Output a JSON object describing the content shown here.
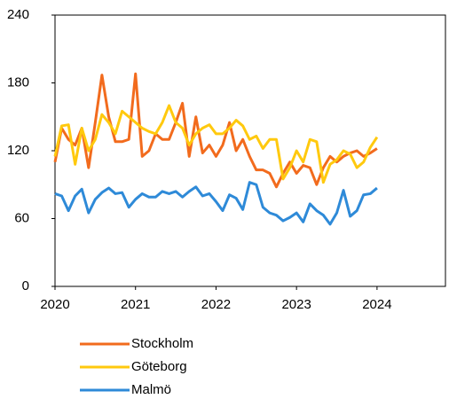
{
  "chart_data": {
    "type": "line",
    "x": [
      2020,
      2020.083,
      2020.167,
      2020.25,
      2020.333,
      2020.417,
      2020.5,
      2020.583,
      2020.667,
      2020.75,
      2020.833,
      2020.917,
      2021,
      2021.083,
      2021.167,
      2021.25,
      2021.333,
      2021.417,
      2021.5,
      2021.583,
      2021.667,
      2021.75,
      2021.833,
      2021.917,
      2022,
      2022.083,
      2022.167,
      2022.25,
      2022.333,
      2022.417,
      2022.5,
      2022.583,
      2022.667,
      2022.75,
      2022.833,
      2022.917,
      2023,
      2023.083,
      2023.167,
      2023.25,
      2023.333,
      2023.417,
      2023.5,
      2023.583,
      2023.667,
      2023.75,
      2023.833,
      2023.917,
      2024
    ],
    "series": [
      {
        "name": "Stockholm",
        "color": "#f26b1d",
        "values": [
          110,
          140,
          130,
          125,
          140,
          105,
          145,
          187,
          150,
          128,
          128,
          130,
          188,
          115,
          120,
          135,
          130,
          130,
          145,
          162,
          115,
          150,
          118,
          125,
          115,
          125,
          145,
          120,
          130,
          115,
          103,
          103,
          100,
          88,
          100,
          110,
          100,
          107,
          105,
          90,
          105,
          115,
          110,
          115,
          118,
          120,
          115,
          118,
          122
        ]
      },
      {
        "name": "Göteborg",
        "color": "#ffc90e",
        "values": [
          115,
          142,
          143,
          108,
          140,
          120,
          130,
          152,
          145,
          135,
          155,
          150,
          145,
          140,
          137,
          135,
          145,
          160,
          145,
          140,
          125,
          135,
          140,
          143,
          135,
          135,
          140,
          147,
          142,
          130,
          133,
          122,
          130,
          130,
          95,
          105,
          120,
          110,
          130,
          128,
          92,
          108,
          112,
          120,
          117,
          105,
          110,
          123,
          132
        ]
      },
      {
        "name": "Malmö",
        "color": "#2e8ad8",
        "values": [
          82,
          80,
          67,
          80,
          86,
          65,
          77,
          83,
          87,
          82,
          83,
          70,
          77,
          82,
          79,
          79,
          84,
          82,
          84,
          79,
          84,
          88,
          80,
          82,
          75,
          67,
          81,
          78,
          68,
          92,
          90,
          70,
          65,
          63,
          58,
          61,
          65,
          57,
          73,
          67,
          63,
          55,
          65,
          85,
          62,
          67,
          81,
          82,
          87
        ]
      }
    ],
    "xlim": [
      2020,
      2024.85
    ],
    "xticks": [
      2020,
      2021,
      2022,
      2023,
      2024
    ],
    "ylim": [
      0,
      240
    ],
    "yticks": [
      0,
      60,
      120,
      180,
      240
    ]
  }
}
